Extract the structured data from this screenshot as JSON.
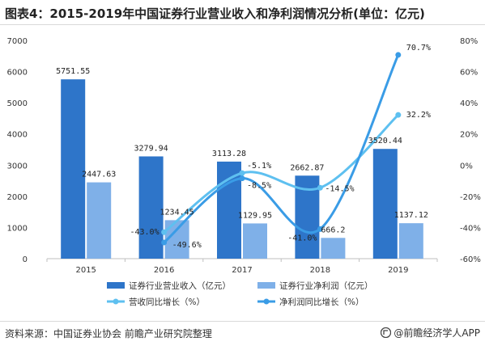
{
  "title": "图表4：2015-2019年中国证券行业营业收入和净利润情况分析(单位：亿元)",
  "source": "资料来源：中国证券业协会 前瞻产业研究院整理",
  "brand": "@前瞻经济学人APP",
  "colors": {
    "revenue_bar": "#2e75c9",
    "profit_bar": "#7fb0e8",
    "revenue_growth_line": "#5ec0f0",
    "profit_growth_line": "#3a9ce6"
  },
  "chart_data": {
    "type": "bar",
    "categories": [
      "2015",
      "2016",
      "2017",
      "2018",
      "2019"
    ],
    "series": [
      {
        "name": "证券行业营业收入（亿元）",
        "type": "bar",
        "axis": "left",
        "values": [
          5751.55,
          3279.94,
          3113.28,
          2662.87,
          3520.44
        ],
        "labels": [
          "5751.55",
          "3279.94",
          "3113.28",
          "2662.87",
          "3520.44"
        ]
      },
      {
        "name": "证券行业净利润（亿元）",
        "type": "bar",
        "axis": "left",
        "values": [
          2447.63,
          1234.45,
          1129.95,
          666.2,
          1137.12
        ],
        "labels": [
          "2447.63",
          "1234.45",
          "1129.95",
          "666.2",
          "1137.12"
        ]
      },
      {
        "name": "营收同比增长（%）",
        "type": "line",
        "axis": "right",
        "values": [
          null,
          -43.0,
          -5.1,
          -14.5,
          32.2
        ],
        "labels": [
          "",
          "-43.0%",
          "-5.1%",
          "-14.5%",
          "32.2%"
        ]
      },
      {
        "name": "净利润同比增长（%）",
        "type": "line",
        "axis": "right",
        "values": [
          null,
          -49.6,
          -8.5,
          -41.0,
          70.7
        ],
        "labels": [
          "",
          "-49.6%",
          "-8.5%",
          "-41.0%",
          "70.7%"
        ]
      }
    ],
    "y_left": {
      "range": [
        0,
        7000
      ],
      "ticks": [
        "0",
        "1000",
        "2000",
        "3000",
        "4000",
        "5000",
        "6000",
        "7000"
      ]
    },
    "y_right": {
      "range": [
        -60,
        80
      ],
      "ticks": [
        "-60%",
        "-40%",
        "-20%",
        "0%",
        "20%",
        "40%",
        "60%",
        "80%"
      ]
    },
    "legend_position": "bottom",
    "grid": false
  }
}
